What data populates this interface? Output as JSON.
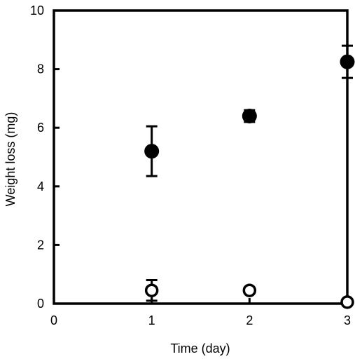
{
  "chart_data": {
    "type": "scatter",
    "xlabel": "Time (day)",
    "ylabel": "Weight loss (mg)",
    "xlim": [
      0,
      3
    ],
    "ylim": [
      0,
      10
    ],
    "x_ticks": [
      "0",
      "1",
      "2",
      "3"
    ],
    "y_ticks": [
      "0",
      "2",
      "4",
      "6",
      "8",
      "10"
    ],
    "grid": false,
    "series": [
      {
        "marker": "filled-circle",
        "color": "#000000",
        "x": [
          1,
          2,
          3
        ],
        "y": [
          5.2,
          6.4,
          8.25
        ],
        "err": [
          0.85,
          0.2,
          0.55
        ]
      },
      {
        "marker": "open-circle",
        "color": "#000000",
        "x": [
          1,
          2,
          3
        ],
        "y": [
          0.45,
          0.45,
          0.05
        ],
        "err": [
          0.35,
          0.0,
          0.0
        ]
      }
    ]
  }
}
